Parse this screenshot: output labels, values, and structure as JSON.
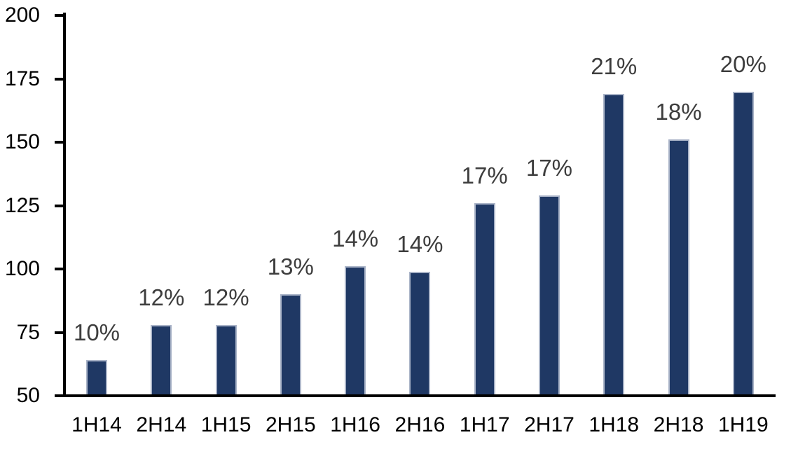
{
  "chart_data": {
    "type": "bar",
    "categories": [
      "1H14",
      "2H14",
      "1H15",
      "2H15",
      "1H16",
      "2H16",
      "1H17",
      "2H17",
      "1H18",
      "2H18",
      "1H19"
    ],
    "values": [
      64,
      78,
      78,
      90,
      101,
      99,
      126,
      129,
      169,
      151,
      170
    ],
    "data_labels": [
      "10%",
      "12%",
      "12%",
      "13%",
      "14%",
      "14%",
      "17%",
      "17%",
      "21%",
      "18%",
      "20%"
    ],
    "title": "",
    "xlabel": "",
    "ylabel": "",
    "ylim": [
      50,
      200
    ],
    "yticks": [
      50,
      75,
      100,
      125,
      150,
      175,
      200
    ],
    "grid": false,
    "legend_position": "none",
    "colors": {
      "bar_fill": "#1f3864",
      "bar_border": "#aab4c8",
      "data_label": "#3d3d3d",
      "axis": "#000000",
      "tick_label": "#000000",
      "background": "#ffffff"
    }
  }
}
